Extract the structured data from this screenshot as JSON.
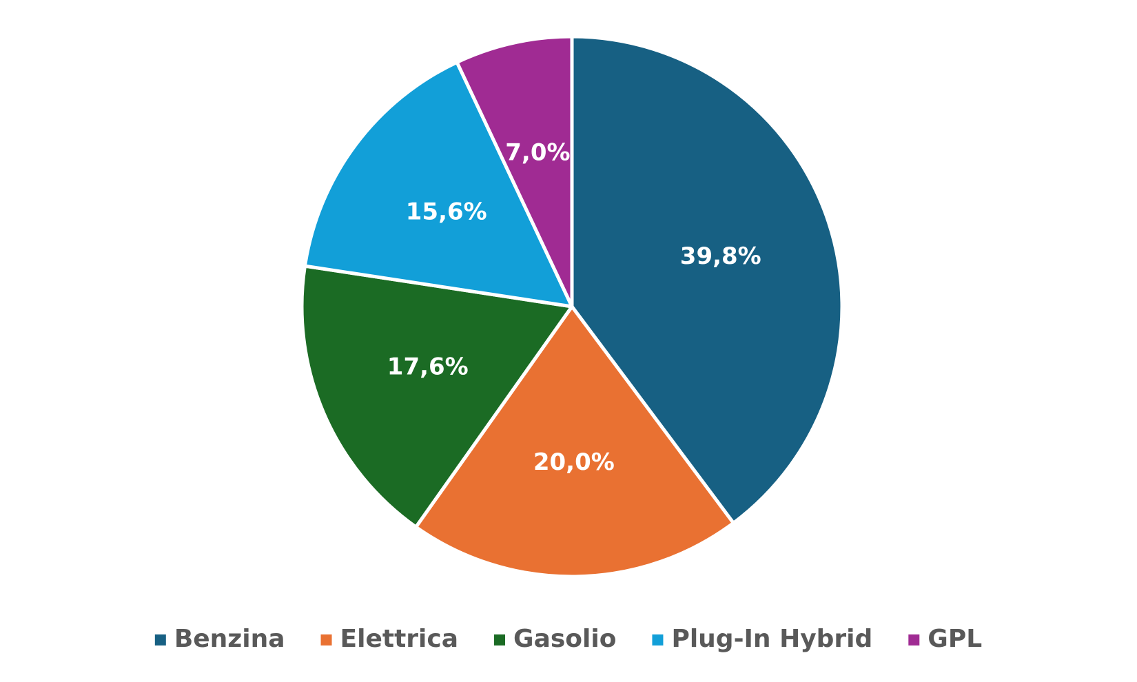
{
  "chart_data": {
    "type": "pie",
    "categories": [
      "Benzina",
      "Elettrica",
      "Gasolio",
      "Plug-In Hybrid",
      "GPL"
    ],
    "values": [
      39.8,
      20.0,
      17.6,
      15.6,
      7.0
    ],
    "value_labels": [
      "39,8%",
      "20,0%",
      "17,6%",
      "15,6%",
      "7,0%"
    ],
    "colors": [
      "#176083",
      "#e97132",
      "#1b6b24",
      "#129fd8",
      "#a02b93"
    ],
    "legend": "bottom"
  }
}
